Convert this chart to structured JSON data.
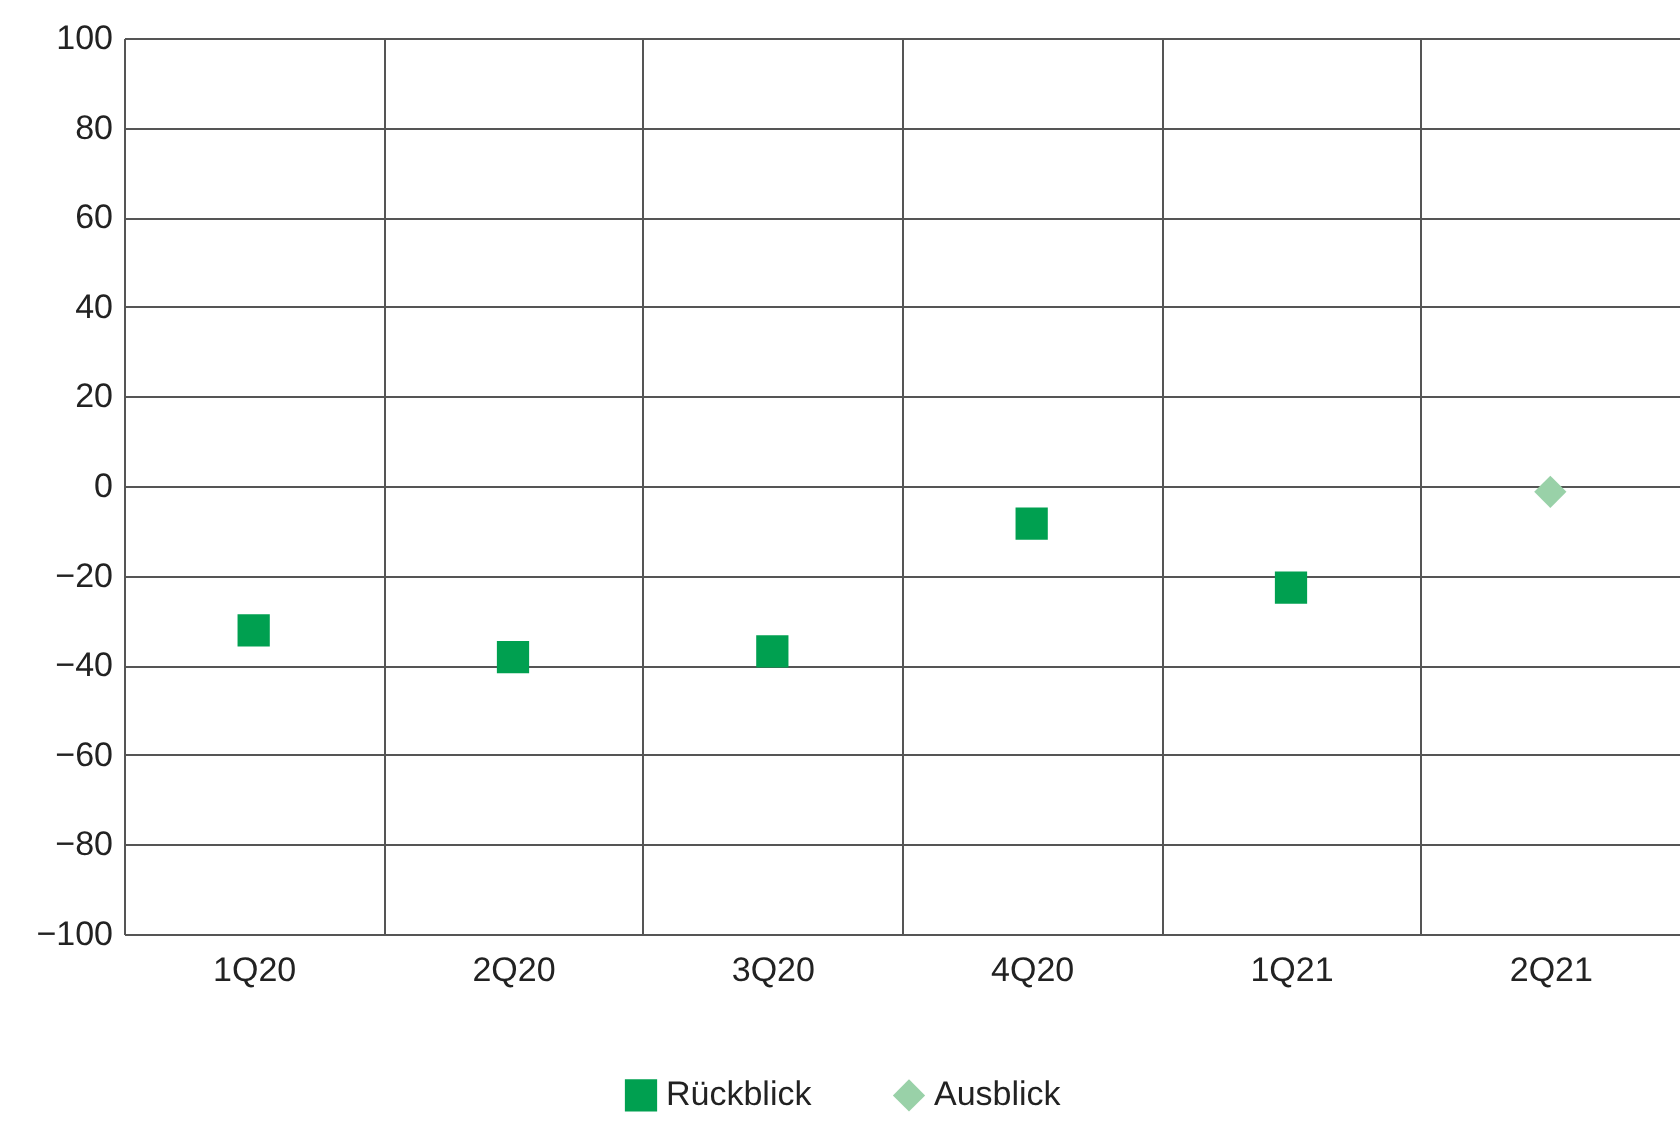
{
  "chart_data": {
    "type": "scatter",
    "categories": [
      "1Q20",
      "2Q20",
      "3Q20",
      "4Q20",
      "1Q21",
      "2Q21"
    ],
    "series": [
      {
        "name": "Rückblick",
        "color": "#00a050",
        "marker": "square",
        "values": [
          -32.2,
          -38.2,
          -36.9,
          -8.4,
          -22.7,
          null
        ]
      },
      {
        "name": "Ausblick",
        "color": "#99d1a8",
        "marker": "diamond",
        "values": [
          null,
          null,
          null,
          null,
          null,
          -1.3
        ]
      }
    ],
    "ylim": [
      -100,
      100
    ],
    "yticks": [
      -100,
      -80,
      -60,
      -40,
      -20,
      0,
      20,
      40,
      60,
      80,
      100
    ],
    "grid": true,
    "legend": "bottom"
  }
}
